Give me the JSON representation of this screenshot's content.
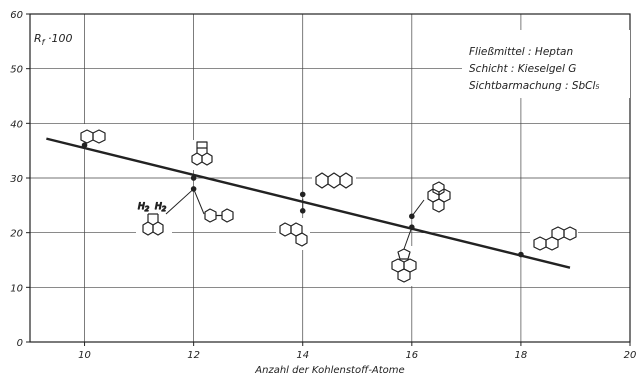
{
  "chart_data": {
    "type": "scatter",
    "xlabel": "Anzahl der Kohlenstoff-Atome",
    "ylabel": "R_f · 100",
    "ylabel_main": "R",
    "ylabel_sub": "f",
    "ylabel_rest": " ·100",
    "xlim": [
      9,
      20
    ],
    "ylim": [
      0,
      60
    ],
    "x_ticks": [
      10,
      12,
      14,
      16,
      18,
      20
    ],
    "y_ticks": [
      0,
      10,
      20,
      30,
      40,
      50,
      60
    ],
    "grid": true,
    "conditions": [
      "Fließmittel : Heptan",
      "Schicht : Kieselgel G",
      "Sichtbarmachung : SbCl₅"
    ],
    "points": [
      {
        "x": 10,
        "y": 36,
        "structure": "naphthalene"
      },
      {
        "x": 12,
        "y": 30,
        "structure": "acenaphthylene"
      },
      {
        "x": 12,
        "y": 28,
        "structure": "acenaphthene / biphenyl"
      },
      {
        "x": 14,
        "y": 27,
        "structure": "anthracene"
      },
      {
        "x": 14,
        "y": 24,
        "structure": "phenanthrene"
      },
      {
        "x": 16,
        "y": 23,
        "structure": "pyrene"
      },
      {
        "x": 16,
        "y": 21,
        "structure": "fluoranthene"
      },
      {
        "x": 18,
        "y": 16,
        "structure": "chrysene"
      }
    ],
    "regression_line": {
      "x": [
        9.3,
        18.9
      ],
      "y": [
        37.2,
        13.6
      ]
    },
    "annotations": {
      "h2_left": "H",
      "h2_right": "H",
      "h2_sub": "2"
    }
  }
}
